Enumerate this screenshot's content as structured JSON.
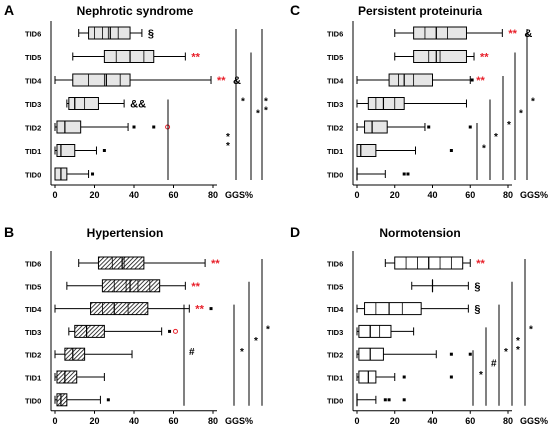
{
  "figure": {
    "x_unit": "GGS%",
    "category_labels": [
      "TID6",
      "TID5",
      "TID4",
      "TID3",
      "TID2",
      "TID1",
      "TID0"
    ],
    "colors": {
      "red_mark": "#e8202a",
      "fill_light": "#e6e6e6",
      "fill_white": "#ffffff",
      "ink": "#000000"
    }
  },
  "chart_data": [
    {
      "type": "box",
      "panel_letter": "A",
      "title": "Nephrotic syndrome",
      "fill": "light",
      "xlim": [
        0,
        80
      ],
      "xticks": [
        0,
        20,
        40,
        60,
        80
      ],
      "xlabel": "GGS%",
      "categories": [
        "TID6",
        "TID5",
        "TID4",
        "TID3",
        "TID2",
        "TID1",
        "TID0"
      ],
      "boxes": [
        {
          "whisker_low": 12,
          "q1": 17,
          "inner": [
            20,
            24,
            27,
            32
          ],
          "median": 28,
          "q3": 38,
          "whisker_high": 44,
          "outliers": [],
          "outliers_red": []
        },
        {
          "whisker_low": 9,
          "q1": 25,
          "inner": [
            31,
            38,
            45
          ],
          "median": 38,
          "q3": 50,
          "whisker_high": 66,
          "outliers": [],
          "outliers_red": []
        },
        {
          "whisker_low": 0,
          "q1": 9,
          "inner": [
            17,
            25,
            33
          ],
          "median": 26,
          "q3": 38,
          "whisker_high": 79,
          "outliers": [],
          "outliers_red": []
        },
        {
          "whisker_low": 6,
          "q1": 7,
          "inner": [
            10,
            15
          ],
          "median": 10,
          "q3": 22,
          "whisker_high": 35,
          "outliers": [],
          "outliers_red": []
        },
        {
          "whisker_low": 0,
          "q1": 1,
          "inner": [],
          "median": 5,
          "q3": 13,
          "whisker_high": 37,
          "outliers": [
            40,
            50
          ],
          "outliers_red": [
            57
          ]
        },
        {
          "whisker_low": 0,
          "q1": 1,
          "inner": [],
          "median": 3,
          "q3": 10,
          "whisker_high": 21,
          "outliers": [
            25
          ],
          "outliers_red": []
        },
        {
          "whisker_low": 0,
          "q1": 0,
          "inner": [],
          "median": 3,
          "q3": 6,
          "whisker_high": 17,
          "outliers": [
            19
          ],
          "outliers_red": []
        }
      ],
      "annotations": [
        {
          "row": 0,
          "text": "§",
          "color": "black"
        },
        {
          "row": 1,
          "text": "**",
          "color": "red"
        },
        {
          "row": 2,
          "text": "**",
          "color": "red"
        },
        {
          "row": 2,
          "text": "&",
          "color": "black"
        },
        {
          "row": 3,
          "text": "&&",
          "color": "black"
        }
      ],
      "brackets": [
        {
          "from_row": 3,
          "to_row": 6,
          "label": "**"
        },
        {
          "from_row": 0,
          "to_row": 6,
          "label": "*"
        },
        {
          "from_row": 1,
          "to_row": 6,
          "label": "*"
        },
        {
          "from_row": 0,
          "to_row": 6,
          "label": "**"
        }
      ]
    },
    {
      "type": "box",
      "panel_letter": "B",
      "title": "Hypertension",
      "fill": "hatch",
      "xlim": [
        0,
        80
      ],
      "xticks": [
        0,
        20,
        40,
        60,
        80
      ],
      "xlabel": "GGS%",
      "categories": [
        "TID6",
        "TID5",
        "TID4",
        "TID3",
        "TID2",
        "TID1",
        "TID0"
      ],
      "boxes": [
        {
          "whisker_low": 12,
          "q1": 22,
          "inner": [
            29,
            35
          ],
          "median": 34,
          "q3": 45,
          "whisker_high": 76,
          "outliers": [],
          "outliers_red": []
        },
        {
          "whisker_low": 6,
          "q1": 24,
          "inner": [
            30,
            36,
            42,
            48
          ],
          "median": 38,
          "q3": 53,
          "whisker_high": 66,
          "outliers": [],
          "outliers_red": []
        },
        {
          "whisker_low": 0,
          "q1": 18,
          "inner": [
            24,
            37
          ],
          "median": 30,
          "q3": 47,
          "whisker_high": 68,
          "outliers": [
            79
          ],
          "outliers_red": []
        },
        {
          "whisker_low": 7,
          "q1": 10,
          "inner": [],
          "median": 16,
          "q3": 25,
          "whisker_high": 54,
          "outliers": [
            58
          ],
          "outliers_red": [
            61
          ]
        },
        {
          "whisker_low": 0,
          "q1": 5,
          "inner": [],
          "median": 9,
          "q3": 15,
          "whisker_high": 39,
          "outliers": [],
          "outliers_red": []
        },
        {
          "whisker_low": 0,
          "q1": 1,
          "inner": [],
          "median": 5,
          "q3": 11,
          "whisker_high": 25,
          "outliers": [],
          "outliers_red": []
        },
        {
          "whisker_low": 0,
          "q1": 1,
          "inner": [],
          "median": 3,
          "q3": 6,
          "whisker_high": 23,
          "outliers": [
            27
          ],
          "outliers_red": []
        }
      ],
      "annotations": [
        {
          "row": 0,
          "text": "**",
          "color": "red"
        },
        {
          "row": 1,
          "text": "**",
          "color": "red"
        },
        {
          "row": 2,
          "text": "**",
          "color": "red"
        }
      ],
      "brackets": [
        {
          "from_row": 2,
          "to_row": 6,
          "label": "#"
        },
        {
          "from_row": 2,
          "to_row": 6,
          "label": "*"
        },
        {
          "from_row": 1,
          "to_row": 6,
          "label": "*"
        },
        {
          "from_row": 0,
          "to_row": 6,
          "label": "*"
        }
      ]
    },
    {
      "type": "box",
      "panel_letter": "C",
      "title": "Persistent proteinuria",
      "fill": "light",
      "xlim": [
        0,
        80
      ],
      "xticks": [
        0,
        20,
        40,
        60,
        80
      ],
      "xlabel": "GGS%",
      "categories": [
        "TID6",
        "TID5",
        "TID4",
        "TID3",
        "TID2",
        "TID1",
        "TID0"
      ],
      "boxes": [
        {
          "whisker_low": 20,
          "q1": 30,
          "inner": [
            36,
            42,
            48
          ],
          "median": 42,
          "q3": 58,
          "whisker_high": 77,
          "outliers": [],
          "outliers_red": []
        },
        {
          "whisker_low": 20,
          "q1": 30,
          "inner": [
            38,
            44
          ],
          "median": 42,
          "q3": 58,
          "whisker_high": 62,
          "outliers": [],
          "outliers_red": []
        },
        {
          "whisker_low": 0,
          "q1": 17,
          "inner": [
            22,
            30
          ],
          "median": 25,
          "q3": 40,
          "whisker_high": 60,
          "outliers": [
            61
          ],
          "outliers_red": []
        },
        {
          "whisker_low": 0,
          "q1": 6,
          "inner": [
            10,
            20
          ],
          "median": 14,
          "q3": 25,
          "whisker_high": 58,
          "outliers": [],
          "outliers_red": []
        },
        {
          "whisker_low": 0,
          "q1": 4,
          "inner": [],
          "median": 8,
          "q3": 16,
          "whisker_high": 36,
          "outliers": [
            38,
            60
          ],
          "outliers_red": []
        },
        {
          "whisker_low": 0,
          "q1": 0,
          "inner": [],
          "median": 2,
          "q3": 10,
          "whisker_high": 31,
          "outliers": [
            50
          ],
          "outliers_red": []
        },
        {
          "whisker_low": 0,
          "q1": 0,
          "inner": [],
          "median": 0,
          "q3": 0,
          "whisker_high": 15,
          "outliers": [
            25,
            27
          ],
          "outliers_red": []
        }
      ],
      "annotations": [
        {
          "row": 0,
          "text": "**",
          "color": "red"
        },
        {
          "row": 0,
          "text": "&",
          "color": "black"
        },
        {
          "row": 1,
          "text": "**",
          "color": "red"
        },
        {
          "row": 2,
          "text": "**",
          "color": "red"
        }
      ],
      "brackets": [
        {
          "from_row": 4,
          "to_row": 6,
          "label": "*"
        },
        {
          "from_row": 3,
          "to_row": 6,
          "label": "*"
        },
        {
          "from_row": 2,
          "to_row": 6,
          "label": "*"
        },
        {
          "from_row": 1,
          "to_row": 6,
          "label": "*"
        },
        {
          "from_row": 0,
          "to_row": 6,
          "label": "*"
        }
      ]
    },
    {
      "type": "box",
      "panel_letter": "D",
      "title": "Normotension",
      "fill": "white",
      "xlim": [
        0,
        80
      ],
      "xticks": [
        0,
        20,
        40,
        60,
        80
      ],
      "xlabel": "GGS%",
      "categories": [
        "TID6",
        "TID5",
        "TID4",
        "TID3",
        "TID2",
        "TID1",
        "TID0"
      ],
      "boxes": [
        {
          "whisker_low": 15,
          "q1": 20,
          "inner": [
            26,
            32,
            38,
            44,
            50
          ],
          "median": 38,
          "q3": 56,
          "whisker_high": 60,
          "outliers": [],
          "outliers_red": []
        },
        {
          "whisker_low": 29,
          "q1": 40,
          "inner": [],
          "median": 40,
          "q3": 40,
          "whisker_high": 59,
          "outliers": [],
          "outliers_red": []
        },
        {
          "whisker_low": 0,
          "q1": 4,
          "inner": [
            10,
            17,
            24
          ],
          "median": 17,
          "q3": 34,
          "whisker_high": 59,
          "outliers": [],
          "outliers_red": []
        },
        {
          "whisker_low": 0,
          "q1": 1,
          "inner": [
            7,
            12
          ],
          "median": 7,
          "q3": 18,
          "whisker_high": 30,
          "outliers": [],
          "outliers_red": []
        },
        {
          "whisker_low": 0,
          "q1": 1,
          "inner": [],
          "median": 7,
          "q3": 14,
          "whisker_high": 42,
          "outliers": [
            50,
            60
          ],
          "outliers_red": []
        },
        {
          "whisker_low": 0,
          "q1": 1,
          "inner": [],
          "median": 6,
          "q3": 10,
          "whisker_high": 20,
          "outliers": [
            25,
            50
          ],
          "outliers_red": []
        },
        {
          "whisker_low": 0,
          "q1": 0,
          "inner": [],
          "median": 0,
          "q3": 0,
          "whisker_high": 10,
          "outliers": [
            15,
            17,
            25
          ],
          "outliers_red": []
        }
      ],
      "annotations": [
        {
          "row": 0,
          "text": "**",
          "color": "red"
        },
        {
          "row": 1,
          "text": "§",
          "color": "black"
        },
        {
          "row": 2,
          "text": "§",
          "color": "black"
        }
      ],
      "brackets": [
        {
          "from_row": 4,
          "to_row": 6,
          "label": "*"
        },
        {
          "from_row": 3,
          "to_row": 6,
          "label": "#"
        },
        {
          "from_row": 2,
          "to_row": 6,
          "label": "*"
        },
        {
          "from_row": 1,
          "to_row": 6,
          "label": "**"
        },
        {
          "from_row": 0,
          "to_row": 6,
          "label": "*"
        }
      ]
    }
  ]
}
